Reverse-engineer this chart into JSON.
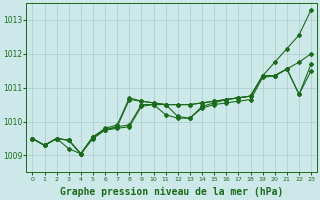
{
  "background_color": "#cde8e8",
  "plot_bg_color": "#cde8e8",
  "line_color": "#1a6b1a",
  "grid_color": "#aacccc",
  "xlabel": "Graphe pression niveau de la mer (hPa)",
  "xlabel_fontsize": 7,
  "ylim": [
    1008.5,
    1013.5
  ],
  "xlim": [
    -0.5,
    23.5
  ],
  "yticks": [
    1009,
    1010,
    1011,
    1012,
    1013
  ],
  "xticks": [
    0,
    1,
    2,
    3,
    4,
    5,
    6,
    7,
    8,
    9,
    10,
    11,
    12,
    13,
    14,
    15,
    16,
    17,
    18,
    19,
    20,
    21,
    22,
    23
  ],
  "lines": [
    {
      "x": [
        0,
        1,
        2,
        3,
        4,
        5,
        6,
        7,
        8,
        9,
        10,
        11,
        12,
        13,
        14,
        15,
        16,
        17,
        18,
        19,
        20,
        21,
        22,
        23
      ],
      "y": [
        1009.5,
        1009.3,
        1009.5,
        1009.45,
        1009.05,
        1009.55,
        1009.8,
        1009.9,
        1010.7,
        1010.6,
        1010.55,
        1010.5,
        1010.5,
        1010.5,
        1010.55,
        1010.6,
        1010.65,
        1010.7,
        1010.75,
        1011.35,
        1011.75,
        1012.15,
        1012.55,
        1013.3
      ]
    },
    {
      "x": [
        0,
        1,
        2,
        3,
        4,
        5,
        6,
        7,
        8,
        9,
        10,
        11,
        12,
        13,
        14,
        15,
        16,
        17,
        18,
        19,
        20,
        21,
        22,
        23
      ],
      "y": [
        1009.5,
        1009.3,
        1009.5,
        1009.45,
        1009.05,
        1009.55,
        1009.75,
        1009.85,
        1009.9,
        1010.5,
        1010.5,
        1010.5,
        1010.5,
        1010.5,
        1010.55,
        1010.6,
        1010.65,
        1010.7,
        1010.75,
        1011.35,
        1011.35,
        1011.55,
        1011.75,
        1012.0
      ]
    },
    {
      "x": [
        0,
        1,
        2,
        3,
        4,
        5,
        6,
        7,
        8,
        9,
        10,
        11,
        12,
        13,
        14,
        15,
        16,
        17,
        18,
        19,
        20,
        21,
        22,
        23
      ],
      "y": [
        1009.5,
        1009.3,
        1009.5,
        1009.45,
        1009.05,
        1009.55,
        1009.75,
        1009.85,
        1010.65,
        1010.6,
        1010.55,
        1010.5,
        1010.15,
        1010.1,
        1010.45,
        1010.55,
        1010.65,
        1010.7,
        1010.75,
        1011.35,
        1011.35,
        1011.55,
        1010.8,
        1011.7
      ]
    },
    {
      "x": [
        0,
        1,
        2,
        3,
        4,
        5,
        6,
        7,
        8,
        9,
        10,
        11,
        12,
        13,
        14,
        15,
        16,
        17,
        18,
        19,
        20,
        21,
        22,
        23
      ],
      "y": [
        1009.5,
        1009.3,
        1009.5,
        1009.2,
        1009.05,
        1009.5,
        1009.75,
        1009.8,
        1009.85,
        1010.45,
        1010.5,
        1010.2,
        1010.1,
        1010.1,
        1010.4,
        1010.5,
        1010.55,
        1010.6,
        1010.65,
        1011.3,
        1011.35,
        1011.55,
        1010.8,
        1011.5
      ]
    }
  ],
  "marker": "D",
  "marker_size": 2.0,
  "linewidth": 0.8
}
